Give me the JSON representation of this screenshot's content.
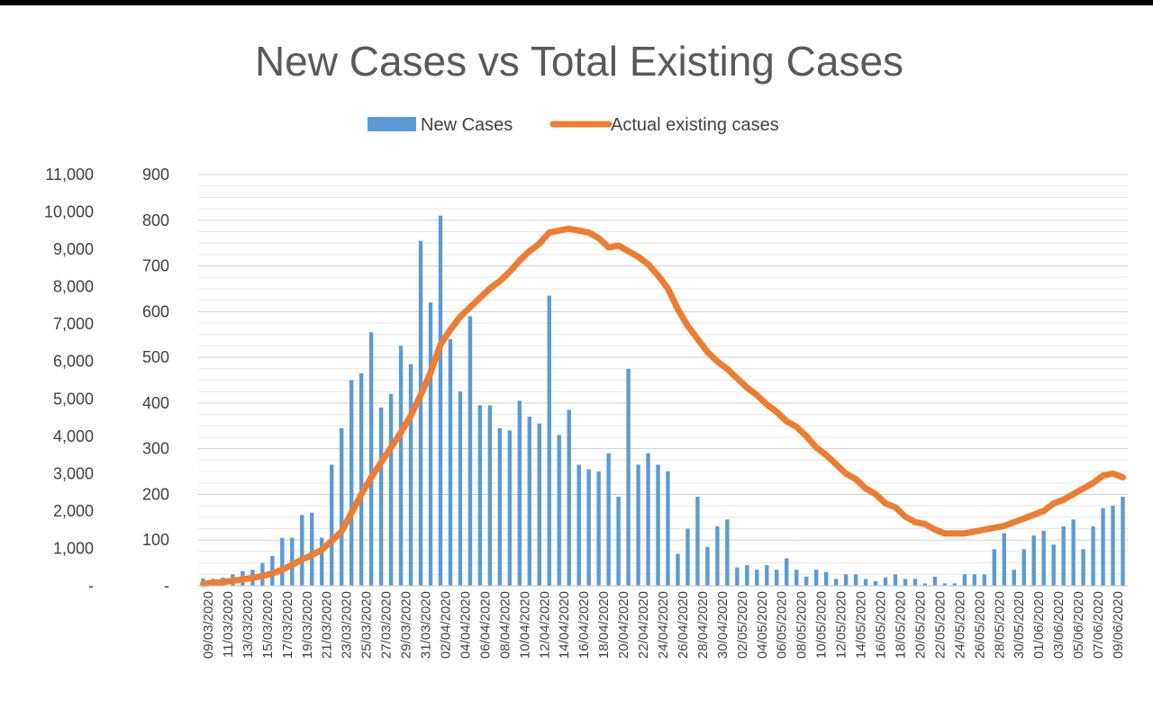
{
  "chart_data": {
    "type": "bar+line",
    "title": "New Cases vs Total Existing Cases",
    "legend": {
      "position": "top",
      "entries": [
        {
          "name": "New Cases",
          "series": "new_cases",
          "color": "#5B9BD5"
        },
        {
          "name": "Actual existing cases",
          "series": "existing_cases",
          "color": "#ED7D31"
        }
      ]
    },
    "grid": true,
    "y_left_outer": {
      "range": [
        0,
        11000
      ],
      "ticks": [
        "-",
        "1,000",
        "2,000",
        "3,000",
        "4,000",
        "5,000",
        "6,000",
        "7,000",
        "8,000",
        "9,000",
        "10,000",
        "11,000"
      ]
    },
    "y_left_inner": {
      "range": [
        0,
        900
      ],
      "ticks": [
        "-",
        "100",
        "200",
        "300",
        "400",
        "500",
        "600",
        "700",
        "800",
        "900"
      ]
    },
    "x_tick_labels": [
      "09/03/2020",
      "11/03/2020",
      "13/03/2020",
      "15/03/2020",
      "17/03/2020",
      "19/03/2020",
      "21/03/2020",
      "23/03/2020",
      "25/03/2020",
      "27/03/2020",
      "29/03/2020",
      "31/03/2020",
      "02/04/2020",
      "04/04/2020",
      "06/04/2020",
      "08/04/2020",
      "10/04/2020",
      "12/04/2020",
      "14/04/2020",
      "16/04/2020",
      "18/04/2020",
      "20/04/2020",
      "22/04/2020",
      "24/04/2020",
      "26/04/2020",
      "28/04/2020",
      "30/04/2020",
      "02/05/2020",
      "04/05/2020",
      "06/05/2020",
      "08/05/2020",
      "10/05/2020",
      "12/05/2020",
      "14/05/2020",
      "16/05/2020",
      "18/05/2020",
      "20/05/2020",
      "22/05/2020",
      "24/05/2020",
      "26/05/2020",
      "28/05/2020",
      "30/05/2020",
      "01/06/2020",
      "03/06/2020",
      "05/06/2020",
      "07/06/2020",
      "09/06/2020"
    ],
    "series": [
      {
        "name": "New Cases",
        "type": "bar",
        "axis": "y_left_inner",
        "color": "#5B9BD5",
        "x_start": "09/03/2020",
        "values": [
          16,
          15,
          18,
          25,
          32,
          35,
          50,
          65,
          105,
          105,
          155,
          160,
          105,
          265,
          345,
          450,
          465,
          555,
          390,
          420,
          525,
          485,
          755,
          620,
          810,
          540,
          425,
          590,
          395,
          395,
          345,
          340,
          405,
          370,
          355,
          635,
          330,
          385,
          265,
          255,
          250,
          290,
          195,
          475,
          265,
          290,
          265,
          250,
          70,
          125,
          195,
          85,
          130,
          145,
          40,
          45,
          35,
          45,
          35,
          60,
          35,
          20,
          35,
          30,
          15,
          25,
          25,
          15,
          10,
          18,
          25,
          15,
          15,
          5,
          20,
          5,
          5,
          25,
          25,
          25,
          80,
          115,
          35,
          80,
          110,
          120,
          90,
          130,
          145,
          80,
          130,
          170,
          175,
          195
        ]
      },
      {
        "name": "Actual existing cases",
        "type": "line",
        "axis": "y_left_outer",
        "color": "#ED7D31",
        "x_start": "09/03/2020",
        "values": [
          50,
          80,
          100,
          130,
          170,
          210,
          260,
          330,
          430,
          560,
          700,
          820,
          960,
          1200,
          1450,
          1950,
          2450,
          2900,
          3300,
          3700,
          4100,
          4550,
          5100,
          5700,
          6450,
          6850,
          7200,
          7450,
          7700,
          7950,
          8150,
          8400,
          8700,
          8950,
          9150,
          9450,
          9500,
          9550,
          9500,
          9450,
          9300,
          9050,
          9100,
          8950,
          8800,
          8600,
          8300,
          7950,
          7400,
          6950,
          6600,
          6250,
          6000,
          5800,
          5550,
          5300,
          5100,
          4850,
          4650,
          4400,
          4250,
          4000,
          3700,
          3500,
          3250,
          3000,
          2850,
          2600,
          2450,
          2200,
          2100,
          1850,
          1700,
          1650,
          1500,
          1400,
          1400,
          1400,
          1450,
          1500,
          1550,
          1600,
          1700,
          1800,
          1900,
          2000,
          2200,
          2300,
          2450,
          2600,
          2750,
          2950,
          3000,
          2900
        ]
      }
    ]
  }
}
